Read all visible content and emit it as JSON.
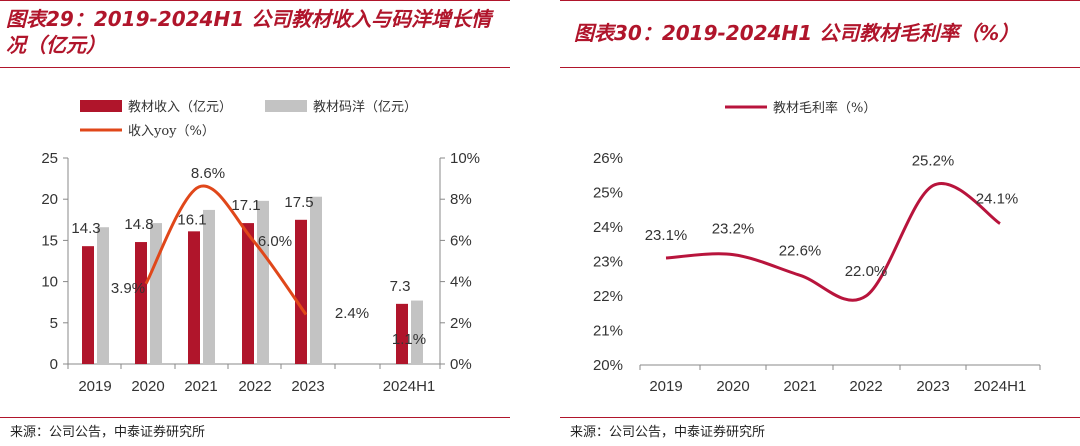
{
  "left": {
    "title": "图表29：2019-2024H1 公司教材收入与码洋增长情况（亿元）",
    "source": "来源：公司公告，中泰证券研究所"
  },
  "right": {
    "title": "图表30：2019-2024H1 公司教材毛利率（%）",
    "source": "来源：公司公告，中泰证券研究所"
  },
  "colors": {
    "revenue_bar": "#b0152b",
    "code_bar": "#c3c3c3",
    "yoy_line": "#e0471a",
    "margin_line": "#b8143c"
  },
  "chart_data": [
    {
      "type": "bar",
      "categories": [
        "2019",
        "2020",
        "2021",
        "2022",
        "2023",
        "2024H1"
      ],
      "series": [
        {
          "name": "教材收入（亿元）",
          "values": [
            14.3,
            14.8,
            16.1,
            17.1,
            17.5,
            7.3
          ],
          "axis": "left",
          "type": "bar"
        },
        {
          "name": "教材码洋（亿元）",
          "values": [
            16.6,
            17.1,
            18.7,
            19.8,
            20.3,
            7.7
          ],
          "axis": "left",
          "type": "bar"
        },
        {
          "name": "收入yoy（%）",
          "values": [
            null,
            3.9,
            8.6,
            6.0,
            2.4,
            null
          ],
          "axis": "right",
          "type": "line"
        }
      ],
      "data_labels": {
        "revenue": [
          "14.3",
          "14.8",
          "16.1",
          "17.1",
          "17.5",
          "7.3"
        ],
        "yoy": [
          "",
          "3.9%",
          "8.6%",
          "6.0%",
          "2.4%",
          "1.1%"
        ]
      },
      "y_left": {
        "ylim": [
          0,
          25
        ],
        "ticks": [
          "0",
          "5",
          "10",
          "15",
          "20",
          "25"
        ]
      },
      "y_right": {
        "ylim": [
          0,
          10
        ],
        "ticks": [
          "0%",
          "2%",
          "4%",
          "6%",
          "8%",
          "10%"
        ]
      },
      "legend": "top"
    },
    {
      "type": "line",
      "categories": [
        "2019",
        "2020",
        "2021",
        "2022",
        "2023",
        "2024H1"
      ],
      "series": [
        {
          "name": "教材毛利率（%）",
          "values": [
            23.1,
            23.2,
            22.6,
            22.0,
            25.2,
            24.1
          ]
        }
      ],
      "data_labels": [
        "23.1%",
        "23.2%",
        "22.6%",
        "22.0%",
        "25.2%",
        "24.1%"
      ],
      "ylim": [
        20,
        26
      ],
      "y_ticks": [
        "20%",
        "21%",
        "22%",
        "23%",
        "24%",
        "25%",
        "26%"
      ],
      "legend": "top"
    }
  ]
}
